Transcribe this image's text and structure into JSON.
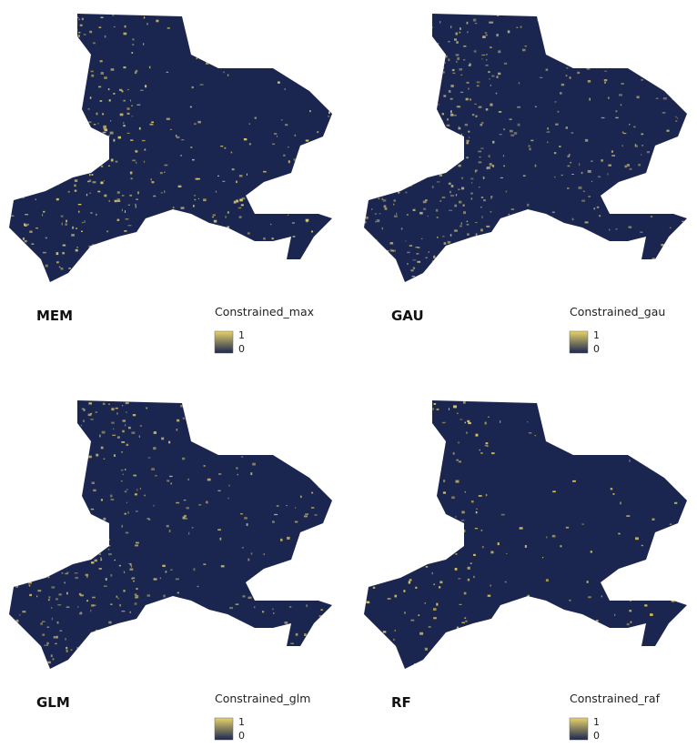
{
  "panels": [
    {
      "label": "MEM",
      "legend": {
        "title": "Constrained_max",
        "max": "1",
        "min": "0"
      }
    },
    {
      "label": "GAU",
      "legend": {
        "title": "Constrained_gau",
        "max": "1",
        "min": "0"
      }
    },
    {
      "label": "GLM",
      "legend": {
        "title": "Constrained_glm",
        "max": "1",
        "min": "0"
      }
    },
    {
      "label": "RF",
      "legend": {
        "title": "Constrained_raf",
        "max": "1",
        "min": "0"
      }
    }
  ]
}
